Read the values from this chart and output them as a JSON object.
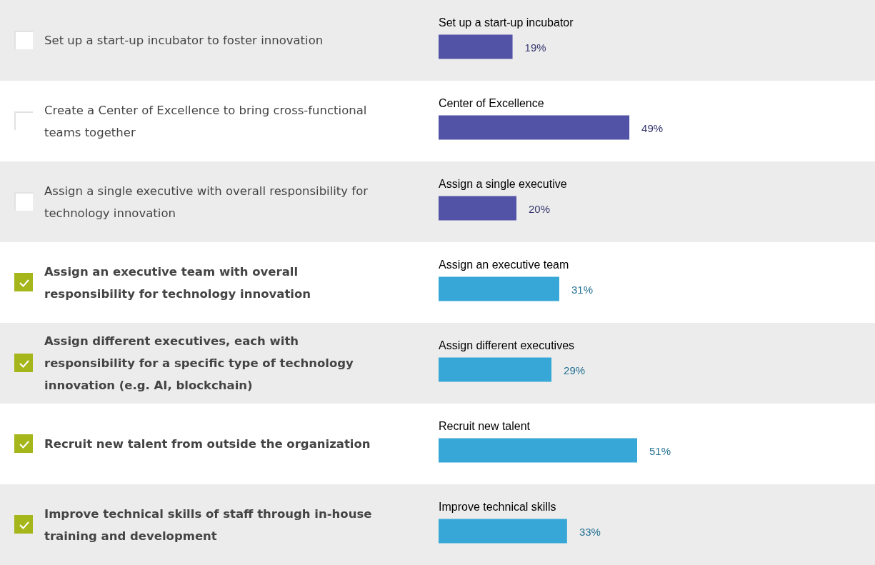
{
  "chart_data": {
    "type": "bar",
    "orientation": "horizontal",
    "categories": [
      "Set up a start-up incubator",
      "Center of Excellence",
      "Assign a single executive",
      "Assign an executive team",
      "Assign different executives",
      "Recruit new talent",
      "Improve technical skills"
    ],
    "series": [
      {
        "color": "#5253a6",
        "values": [
          19,
          49,
          20,
          null,
          null,
          null,
          null
        ],
        "value_labels": [
          "19%",
          "49%",
          "20%",
          null,
          null,
          null,
          null
        ]
      },
      {
        "color": "#37a7d8",
        "values": [
          null,
          null,
          null,
          31,
          29,
          51,
          33
        ],
        "value_labels": [
          null,
          null,
          null,
          "31%",
          "29%",
          "51%",
          "33%"
        ]
      }
    ],
    "annotations": [
      "Set up a start-up incubator to foster innovation",
      "Create a Center of Excellence to bring cross-functional teams together",
      "Assign a single executive with overall responsibility for technology innovation",
      "Assign an executive team with overall responsibility for technology innovation",
      "Assign different executives, each with responsibility for a specific type of technology innovation (e.g. AI, blockchain)",
      "Recruit new talent from outside the organization",
      "Improve technical skills of staff through in-house training and development"
    ]
  }
}
